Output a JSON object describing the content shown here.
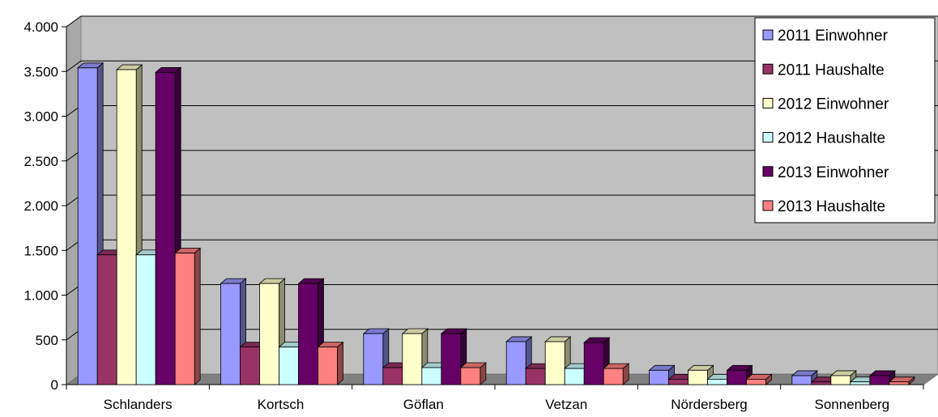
{
  "chart_data": {
    "type": "bar",
    "title": "",
    "xlabel": "",
    "ylabel": "",
    "ylim": [
      0,
      4000
    ],
    "yticks": [
      0,
      500,
      1000,
      1500,
      2000,
      2500,
      3000,
      3500,
      4000
    ],
    "ytick_labels": [
      "0",
      "500",
      "1.000",
      "1.500",
      "2.000",
      "2.500",
      "3.000",
      "3.500",
      "4.000"
    ],
    "grid": true,
    "legend_position": "top-right",
    "categories": [
      "Schlanders",
      "Kortsch",
      "Göflan",
      "Vetzan",
      "Nördersberg",
      "Sonnenberg"
    ],
    "series": [
      {
        "name": "2011 Einwohner",
        "color": "#9999ff",
        "values": [
          3540,
          1130,
          570,
          480,
          160,
          100
        ]
      },
      {
        "name": "2011 Haushalte",
        "color": "#993366",
        "values": [
          1450,
          420,
          190,
          180,
          60,
          30
        ]
      },
      {
        "name": "2012 Einwohner",
        "color": "#ffffcc",
        "values": [
          3520,
          1130,
          570,
          480,
          160,
          100
        ]
      },
      {
        "name": "2012 Haushalte",
        "color": "#ccffff",
        "values": [
          1450,
          420,
          190,
          180,
          60,
          30
        ]
      },
      {
        "name": "2013 Einwohner",
        "color": "#660066",
        "values": [
          3490,
          1130,
          570,
          470,
          160,
          100
        ]
      },
      {
        "name": "2013 Haushalte",
        "color": "#ff8080",
        "values": [
          1470,
          420,
          190,
          180,
          60,
          30
        ]
      }
    ]
  }
}
